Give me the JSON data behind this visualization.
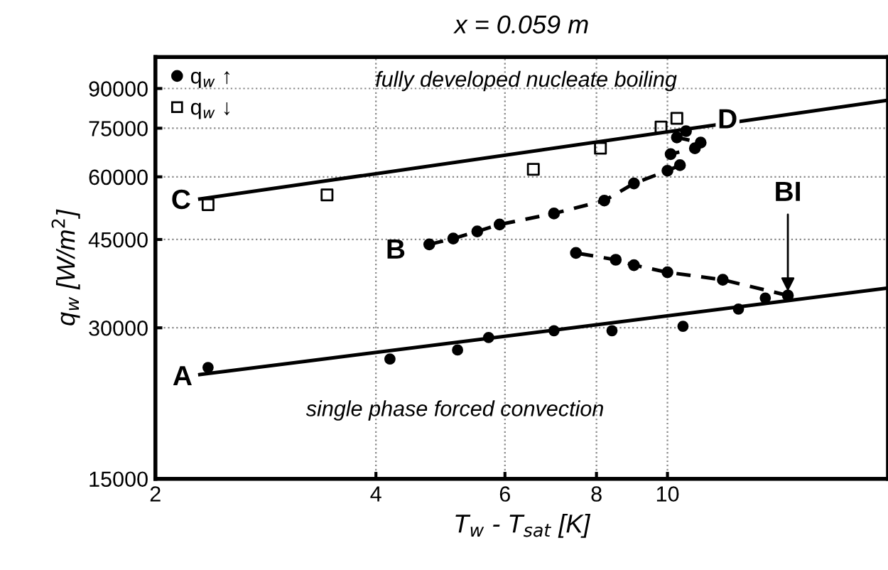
{
  "chart_data": {
    "type": "scatter",
    "title": "x = 0.059 m",
    "xlabel": "T$_{w}$ - T$_{sat}$ [K]",
    "ylabel": "q$_{w}$ [W/m$^{2}$]",
    "log": "xy",
    "xlim": [
      2,
      20
    ],
    "ylim": [
      15000,
      104000
    ],
    "xticks": [
      2,
      4,
      6,
      8,
      10
    ],
    "yticks": [
      15000,
      30000,
      45000,
      60000,
      75000,
      90000
    ],
    "grid": true,
    "legend": "top left",
    "series": [
      {
        "name": "q$_{w}$ ↑",
        "marker": "circle",
        "color": "#000000",
        "x": [
          2.36,
          4.18,
          5.17,
          5.7,
          7.0,
          8.4,
          10.5,
          12.5,
          13.6
        ],
        "values": [
          25000,
          26000,
          27100,
          28700,
          29600,
          29600,
          30200,
          32700,
          34400
        ]
      },
      {
        "name": "q$_{w}$ ↓",
        "marker": "square",
        "color": "#000000",
        "x": [
          2.36,
          3.43,
          6.56,
          8.1,
          9.8,
          10.3
        ],
        "values": [
          52800,
          55200,
          62100,
          68400,
          75400,
          78500
        ]
      },
      {
        "type": "line",
        "line_style": "dashed",
        "marker": "circle",
        "color": "#000000",
        "x": [
          14.6,
          11.9,
          10.0,
          9.0,
          8.5,
          7.5
        ],
        "values": [
          34800,
          37400,
          38700,
          40000,
          41000,
          42300
        ]
      },
      {
        "type": "line",
        "line_style": "dashed",
        "marker": "circle",
        "color": "#000000",
        "x": [
          4.73,
          5.1,
          5.5,
          5.9,
          7.0,
          8.2,
          9.0,
          10.0,
          10.4,
          10.1,
          10.9,
          11.1,
          10.3,
          10.6
        ],
        "values": [
          44000,
          45200,
          46700,
          48200,
          50700,
          53800,
          58200,
          61700,
          63300,
          66600,
          68400,
          70200,
          71900,
          74000
        ]
      },
      {
        "type": "line",
        "line_style": "solid",
        "marker": "none",
        "color": "#000000",
        "x": [
          2.3,
          20
        ],
        "values": [
          24200,
          36000
        ]
      },
      {
        "type": "line",
        "line_style": "solid",
        "marker": "none",
        "color": "#000000",
        "x": [
          2.3,
          20
        ],
        "values": [
          54200,
          85300
        ]
      }
    ],
    "annotations": [
      "fully developed nucleate boiling",
      "single phase forced convection",
      "A",
      "B",
      "C",
      "D",
      {
        "text": "BI",
        "x": 14.6,
        "y": 34800
      }
    ]
  }
}
